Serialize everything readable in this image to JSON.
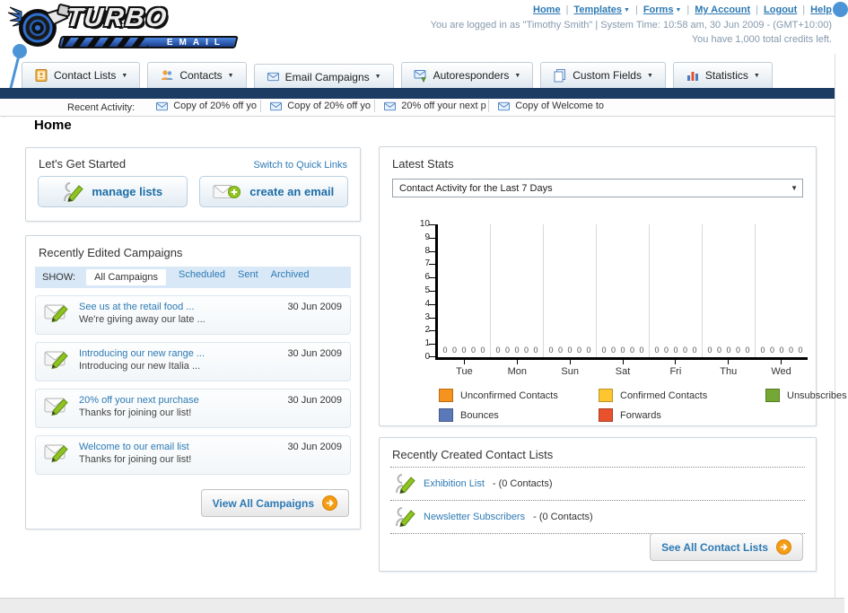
{
  "header": {
    "logo": {
      "title": "TURBO",
      "subtitle": "EMAIL"
    },
    "nav_links": [
      {
        "label": "Home",
        "dropdown": false
      },
      {
        "label": "Templates",
        "dropdown": true
      },
      {
        "label": "Forms",
        "dropdown": true
      },
      {
        "label": "My Account",
        "dropdown": false
      },
      {
        "label": "Logout",
        "dropdown": false
      },
      {
        "label": "Help",
        "dropdown": false
      }
    ],
    "status_line1": "You are logged in as \"Timothy Smith\" | System Time: 10:58 am, 30 Jun 2009 - (GMT+10:00)",
    "status_line2": "You have 1,000 total credits left."
  },
  "nav_tabs": [
    {
      "label": "Contact Lists",
      "icon": "address-book-icon"
    },
    {
      "label": "Contacts",
      "icon": "contacts-icon"
    },
    {
      "label": "Email Campaigns",
      "icon": "envelope-icon"
    },
    {
      "label": "Autoresponders",
      "icon": "autoresponder-icon"
    },
    {
      "label": "Custom Fields",
      "icon": "custom-fields-icon"
    },
    {
      "label": "Statistics",
      "icon": "statistics-icon"
    }
  ],
  "recent_activity": {
    "label": "Recent Activity:",
    "item_icon": "envelope-icon",
    "items": [
      "Copy of 20% off yo",
      "Copy of 20% off yo",
      "20% off your next p",
      "Copy of Welcome to"
    ]
  },
  "page_title": "Home",
  "get_started": {
    "title": "Let's Get Started",
    "switch_link": "Switch to Quick Links",
    "buttons": [
      {
        "label": "manage lists",
        "icon": "person-pencil-icon"
      },
      {
        "label": "create an email",
        "icon": "envelope-plus-icon"
      }
    ]
  },
  "campaigns": {
    "title": "Recently Edited Campaigns",
    "show_label": "SHOW:",
    "filters": [
      {
        "label": "All Campaigns",
        "active": true
      },
      {
        "label": "Scheduled",
        "active": false
      },
      {
        "label": "Sent",
        "active": false
      },
      {
        "label": "Archived",
        "active": false
      }
    ],
    "item_icon": "envelope-pencil-icon",
    "items": [
      {
        "title": "See us at the retail food ...",
        "subtitle": "We're giving away our late ...",
        "date": "30 Jun 2009"
      },
      {
        "title": "Introducing our new range ...",
        "subtitle": "Introducing our new Italia ...",
        "date": "30 Jun 2009"
      },
      {
        "title": "20% off your next purchase",
        "subtitle": "Thanks for joining our list!",
        "date": "30 Jun 2009"
      },
      {
        "title": "Welcome to our email list",
        "subtitle": "Thanks for joining our list!",
        "date": "30 Jun 2009"
      }
    ],
    "view_all_label": "View All Campaigns",
    "button_icon": "arrow-circle-icon"
  },
  "latest_stats": {
    "title": "Latest Stats",
    "dropdown_value": "Contact Activity for the Last 7 Days"
  },
  "chart_data": {
    "type": "bar",
    "title": "Contact Activity for the Last 7 Days",
    "categories": [
      "Tue",
      "Mon",
      "Sun",
      "Sat",
      "Fri",
      "Thu",
      "Wed"
    ],
    "series": [
      {
        "name": "Unconfirmed Contacts",
        "color": "#f6921e",
        "values": [
          0,
          0,
          0,
          0,
          0,
          0,
          0
        ]
      },
      {
        "name": "Confirmed Contacts",
        "color": "#fdc530",
        "values": [
          0,
          0,
          0,
          0,
          0,
          0,
          0
        ]
      },
      {
        "name": "Unsubscribes",
        "color": "#74a733",
        "values": [
          0,
          0,
          0,
          0,
          0,
          0,
          0
        ]
      },
      {
        "name": "Bounces",
        "color": "#5b79b8",
        "values": [
          0,
          0,
          0,
          0,
          0,
          0,
          0
        ]
      },
      {
        "name": "Forwards",
        "color": "#e8512b",
        "values": [
          0,
          0,
          0,
          0,
          0,
          0,
          0
        ]
      }
    ],
    "ylim": [
      0,
      10
    ],
    "y_ticks": [
      10,
      9,
      8,
      7,
      6,
      5,
      4,
      3,
      2,
      1,
      0
    ],
    "value_labels_shown": true,
    "grid": "vertical",
    "legend_position": "bottom"
  },
  "contact_lists": {
    "title": "Recently Created Contact Lists",
    "item_icon": "person-pencil-icon",
    "items": [
      {
        "name": "Exhibition List",
        "suffix": "- (0 Contacts)"
      },
      {
        "name": "Newsletter Subscribers",
        "suffix": "- (0 Contacts)"
      }
    ],
    "see_all_label": "See All Contact Lists",
    "button_icon": "arrow-circle-icon"
  },
  "colors": {
    "accent_link": "#2d7ab4",
    "navy_bar": "#1c3c64",
    "show_bar_bg": "#d9e8f7",
    "annotation": "#4d94d6",
    "button_arrow": "#f49c13"
  }
}
